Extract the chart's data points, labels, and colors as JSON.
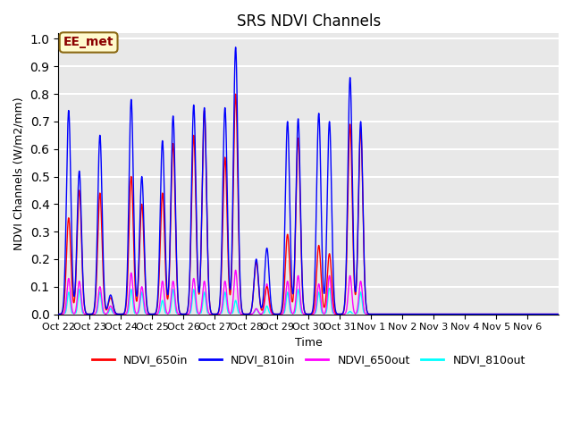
{
  "title": "SRS NDVI Channels",
  "ylabel": "NDVI Channels (W/m2/mm)",
  "xlabel": "Time",
  "annotation_text": "EE_met",
  "annotation_color": "#8B0000",
  "annotation_bg": "#FFFACD",
  "annotation_border": "#8B6914",
  "ylim": [
    0.0,
    1.02
  ],
  "background_color": "#e8e8e8",
  "grid_color": "white",
  "colors": {
    "NDVI_650in": "red",
    "NDVI_810in": "blue",
    "NDVI_650out": "magenta",
    "NDVI_810out": "cyan"
  },
  "tick_labels": [
    "Oct 22",
    "Oct 23",
    "Oct 24",
    "Oct 25",
    "Oct 26",
    "Oct 27",
    "Oct 28",
    "Oct 29",
    "Oct 30",
    "Oct 31",
    "Nov 1",
    "Nov 2",
    "Nov 3",
    "Nov 4",
    "Nov 5",
    "Nov 6"
  ],
  "peaks_810in": [
    0.74,
    0.52,
    0.65,
    0.07,
    0.78,
    0.5,
    0.63,
    0.72,
    0.76,
    0.75,
    0.75,
    0.97,
    0.2,
    0.24,
    0.7,
    0.71,
    0.73,
    0.7,
    0.86,
    0.7
  ],
  "peaks_650in": [
    0.35,
    0.45,
    0.44,
    0.06,
    0.5,
    0.4,
    0.44,
    0.62,
    0.65,
    0.74,
    0.57,
    0.8,
    0.19,
    0.1,
    0.29,
    0.64,
    0.25,
    0.22,
    0.69,
    0.67
  ],
  "peaks_650out": [
    0.13,
    0.12,
    0.1,
    0.03,
    0.15,
    0.1,
    0.12,
    0.12,
    0.13,
    0.12,
    0.12,
    0.16,
    0.02,
    0.11,
    0.12,
    0.14,
    0.11,
    0.14,
    0.14,
    0.12
  ],
  "peaks_810out": [
    0.08,
    0.09,
    0.08,
    0.02,
    0.09,
    0.08,
    0.05,
    0.09,
    0.09,
    0.08,
    0.08,
    0.05,
    0.02,
    0.03,
    0.08,
    0.09,
    0.08,
    0.1,
    0.01,
    0.08
  ]
}
